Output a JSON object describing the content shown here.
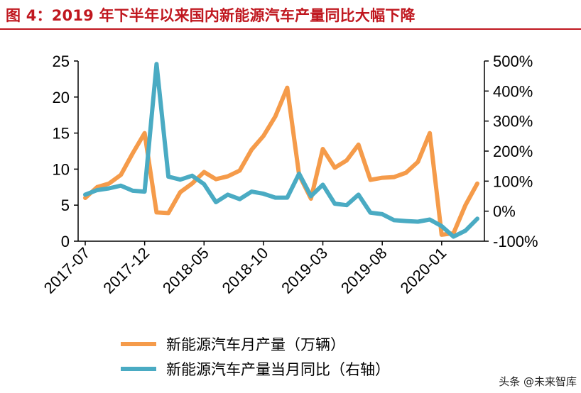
{
  "title": "图 4：2019 年下半年以来国内新能源汽车产量同比大幅下降",
  "watermark": "头条 @未来智库",
  "colors": {
    "title": "#c0171f",
    "orange": "#F59B4A",
    "teal": "#4AABC3"
  },
  "chart_data": {
    "type": "line",
    "x": [
      "2017-07",
      "2017-08",
      "2017-09",
      "2017-10",
      "2017-11",
      "2017-12",
      "2018-01",
      "2018-02",
      "2018-03",
      "2018-04",
      "2018-05",
      "2018-06",
      "2018-07",
      "2018-08",
      "2018-09",
      "2018-10",
      "2018-11",
      "2018-12",
      "2019-01",
      "2019-02",
      "2019-03",
      "2019-04",
      "2019-05",
      "2019-06",
      "2019-07",
      "2019-08",
      "2019-09",
      "2019-10",
      "2019-11",
      "2019-12",
      "2020-01",
      "2020-02",
      "2020-03",
      "2020-04"
    ],
    "xtick_labels": [
      "2017-07",
      "2017-12",
      "2018-05",
      "2018-10",
      "2019-03",
      "2019-08",
      "2020-01"
    ],
    "series": [
      {
        "name": "新能源汽车月产量（万辆）",
        "axis": "left",
        "color": "#F59B4A",
        "values": [
          6.0,
          7.5,
          8.0,
          9.2,
          12.2,
          15.0,
          4.0,
          3.9,
          6.8,
          8.0,
          9.6,
          8.6,
          9.0,
          9.8,
          12.7,
          14.6,
          17.3,
          21.3,
          9.2,
          5.9,
          12.8,
          10.2,
          11.2,
          13.4,
          8.5,
          8.8,
          8.9,
          9.5,
          11.0,
          15.0,
          0.9,
          1.1,
          5.0,
          8.0
        ]
      },
      {
        "name": "新能源汽车产量当月同比（右轴）",
        "axis": "right",
        "color": "#4AABC3",
        "values": [
          55,
          70,
          76,
          85,
          68,
          65,
          490,
          115,
          105,
          118,
          90,
          30,
          55,
          40,
          65,
          58,
          45,
          45,
          125,
          50,
          88,
          25,
          20,
          55,
          -5,
          -10,
          -30,
          -33,
          -35,
          -28,
          -50,
          -85,
          -65,
          -25
        ]
      }
    ],
    "y_left": {
      "lim": [
        0,
        25
      ],
      "ticks": [
        0,
        5,
        10,
        15,
        20,
        25
      ]
    },
    "y_right": {
      "lim": [
        -100,
        500
      ],
      "ticks": [
        "-100%",
        "0%",
        "100%",
        "200%",
        "300%",
        "400%",
        "500%"
      ]
    },
    "legend": {
      "placement": "bottom"
    }
  }
}
